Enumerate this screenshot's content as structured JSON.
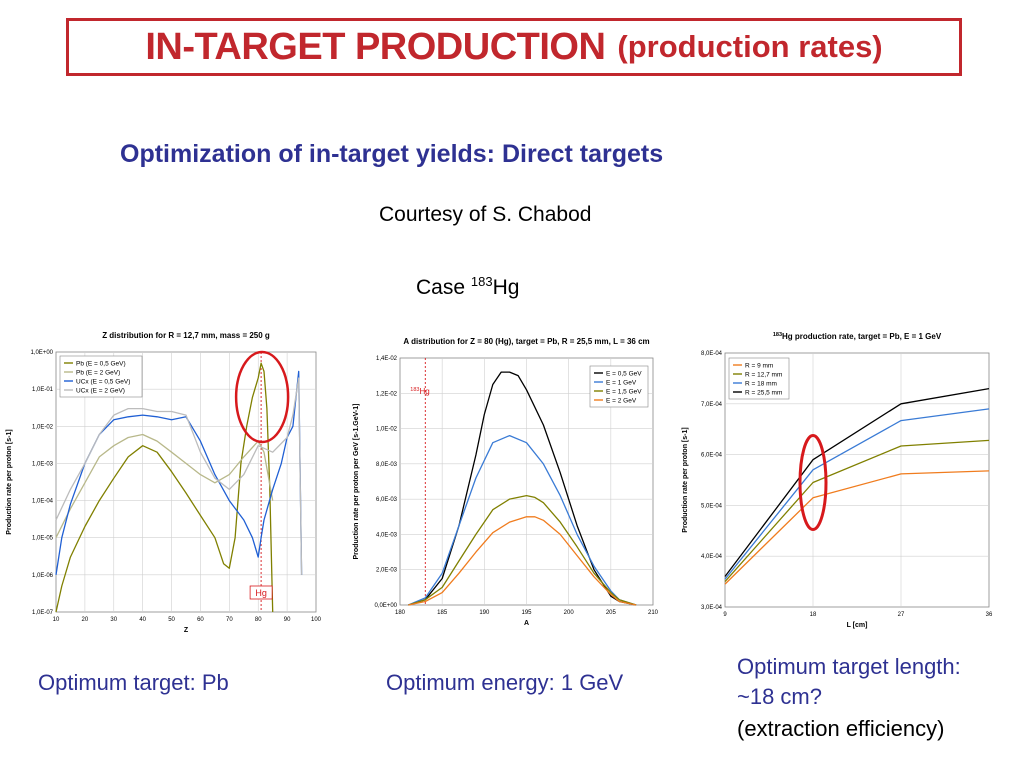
{
  "header": {
    "title": "IN-TARGET PRODUCTION",
    "title_paren": "(production rates)"
  },
  "subtitle": "Optimization of in-target yields: Direct targets",
  "courtesy": "Courtesy of S. Chabod",
  "case": {
    "prefix": "Case",
    "isotope_mass": "183",
    "element": "Hg"
  },
  "colors": {
    "title": "#c1272d",
    "subtitle": "#2e3192",
    "highlight": "#d7191c"
  },
  "captions": {
    "left": "Optimum target: Pb",
    "middle": "Optimum energy: 1 GeV",
    "right_line1": "Optimum target length:",
    "right_line2": "~18 cm?",
    "right_line3": "(extraction efficiency)"
  },
  "chart_data": [
    {
      "type": "line",
      "title": "Z distribution for R = 12,7 mm, mass = 250 g",
      "xlabel": "Z",
      "ylabel": "Production rate per proton [s-1]",
      "xlim": [
        10,
        100
      ],
      "ylim_log": [
        -7,
        0
      ],
      "x_ticks": [
        "10",
        "20",
        "30",
        "40",
        "50",
        "60",
        "70",
        "80",
        "90",
        "100"
      ],
      "y_ticks": [
        "1,0E-07",
        "1,0E-06",
        "1,0E-05",
        "1,0E-04",
        "1,0E-03",
        "1,0E-02",
        "1,0E-01",
        "1,0E+00"
      ],
      "y_scale": "log",
      "grid": true,
      "legend": "top-left",
      "marker": {
        "x": 81,
        "label": "Hg"
      },
      "series": [
        {
          "name": "Pb (E = 0,5 GeV)",
          "color": "#808000",
          "x": [
            10,
            12,
            15,
            20,
            25,
            30,
            35,
            40,
            45,
            50,
            55,
            60,
            65,
            68,
            70,
            72,
            74,
            76,
            78,
            80,
            81,
            82,
            83,
            84,
            85
          ],
          "y": [
            1e-07,
            5e-07,
            3e-06,
            2e-05,
            0.0001,
            0.0004,
            0.0015,
            0.003,
            0.002,
            0.0006,
            0.00016,
            4e-05,
            1e-05,
            2e-06,
            1.5e-06,
            1e-05,
            0.001,
            0.01,
            0.06,
            0.2,
            0.5,
            0.3,
            0.03,
            0.0002,
            1e-07
          ]
        },
        {
          "name": "Pb (E = 2 GeV)",
          "color": "#b8b88a",
          "x": [
            10,
            15,
            20,
            25,
            30,
            35,
            40,
            45,
            50,
            55,
            60,
            65,
            70,
            75,
            80,
            82,
            85
          ],
          "y": [
            1e-05,
            6e-05,
            0.0003,
            0.0015,
            0.003,
            0.005,
            0.006,
            0.004,
            0.002,
            0.001,
            0.0005,
            0.0003,
            0.0005,
            0.0015,
            0.004,
            0.002,
            0.0001
          ]
        },
        {
          "name": "UCx (E = 0,5 GeV)",
          "color": "#1f5fd4",
          "x": [
            10,
            12,
            15,
            20,
            25,
            30,
            35,
            40,
            45,
            50,
            55,
            60,
            65,
            70,
            75,
            78,
            80,
            81,
            82,
            85,
            88,
            90,
            92,
            94,
            95
          ],
          "y": [
            1e-06,
            1e-05,
            8e-05,
            0.001,
            0.006,
            0.015,
            0.018,
            0.02,
            0.018,
            0.015,
            0.018,
            0.004,
            0.0005,
            0.0001,
            3e-05,
            1e-05,
            3e-06,
            1e-05,
            3e-05,
            0.0002,
            0.001,
            0.005,
            0.01,
            0.3,
            1e-06
          ]
        },
        {
          "name": "UCx (E = 2 GeV)",
          "color": "#bcbcbc",
          "x": [
            10,
            15,
            20,
            25,
            30,
            35,
            40,
            45,
            50,
            55,
            60,
            65,
            70,
            75,
            80,
            85,
            90,
            92,
            94,
            95
          ],
          "y": [
            3e-05,
            0.0002,
            0.001,
            0.006,
            0.02,
            0.03,
            0.03,
            0.025,
            0.025,
            0.02,
            0.002,
            0.0004,
            0.0002,
            0.0005,
            0.003,
            0.002,
            0.005,
            0.02,
            0.2,
            1e-06
          ]
        }
      ]
    },
    {
      "type": "line",
      "title": "A distribution for Z = 80 (Hg), target = Pb, R = 25,5 mm, L = 36 cm",
      "xlabel": "A",
      "ylabel": "Production rate per proton per GeV [s-1.GeV-1]",
      "xlim": [
        180,
        210
      ],
      "ylim": [
        0,
        0.014
      ],
      "x_ticks": [
        "180",
        "185",
        "190",
        "195",
        "200",
        "205",
        "210"
      ],
      "y_ticks": [
        "0,0E+00",
        "2,0E-03",
        "4,0E-03",
        "6,0E-03",
        "8,0E-03",
        "1,0E-02",
        "1,2E-02",
        "1,4E-02"
      ],
      "grid": true,
      "legend": "top-right",
      "marker": {
        "x": 183,
        "label_mass": "183",
        "label_element": "Hg"
      },
      "series": [
        {
          "name": "E = 0,5 GeV",
          "color": "#000000",
          "x": [
            181,
            183,
            185,
            187,
            189,
            190,
            191,
            192,
            193,
            194,
            195,
            197,
            199,
            201,
            203,
            205,
            206,
            208
          ],
          "y": [
            0,
            0.0003,
            0.0015,
            0.0045,
            0.0085,
            0.0108,
            0.0125,
            0.0132,
            0.0132,
            0.013,
            0.0122,
            0.0102,
            0.0075,
            0.0045,
            0.002,
            0.0005,
            0.0002,
            0
          ]
        },
        {
          "name": "E = 1 GeV",
          "color": "#3a7bd5",
          "x": [
            181,
            183,
            185,
            187,
            189,
            191,
            193,
            195,
            197,
            199,
            201,
            203,
            205,
            206,
            208
          ],
          "y": [
            0,
            0.0004,
            0.0018,
            0.0045,
            0.0072,
            0.0092,
            0.0096,
            0.0092,
            0.008,
            0.0062,
            0.004,
            0.0022,
            0.0008,
            0.0003,
            0
          ]
        },
        {
          "name": "E = 1,5 GeV",
          "color": "#808000",
          "x": [
            181,
            183,
            185,
            187,
            189,
            191,
            193,
            195,
            196,
            197,
            199,
            201,
            203,
            205,
            206,
            208
          ],
          "y": [
            0,
            0.0003,
            0.001,
            0.0025,
            0.004,
            0.0054,
            0.006,
            0.0062,
            0.0061,
            0.0058,
            0.0047,
            0.0033,
            0.0018,
            0.0007,
            0.0003,
            0
          ]
        },
        {
          "name": "E = 2 GeV",
          "color": "#f07c1e",
          "x": [
            181,
            183,
            185,
            187,
            189,
            191,
            193,
            195,
            196,
            197,
            199,
            201,
            203,
            205,
            206,
            208
          ],
          "y": [
            0,
            0.0002,
            0.0007,
            0.0018,
            0.003,
            0.0041,
            0.0047,
            0.005,
            0.005,
            0.0048,
            0.004,
            0.0028,
            0.0016,
            0.0006,
            0.0002,
            0
          ]
        }
      ]
    },
    {
      "type": "line",
      "title_mass": "183",
      "title": "Hg production rate, target = Pb, E = 1 GeV",
      "xlabel": "L [cm]",
      "ylabel": "Production rate per proton [s-1]",
      "xlim": [
        9,
        36
      ],
      "ylim": [
        0.0003,
        0.0008
      ],
      "x_ticks": [
        "9",
        "18",
        "27",
        "36"
      ],
      "y_ticks": [
        "3,0E-04",
        "4,0E-04",
        "5,0E-04",
        "6,0E-04",
        "7,0E-04",
        "8,0E-04"
      ],
      "grid": true,
      "legend": "top-left",
      "series": [
        {
          "name": "R = 9 mm",
          "color": "#f07c1e",
          "x": [
            9,
            18,
            27,
            36
          ],
          "y": [
            0.000345,
            0.000515,
            0.000562,
            0.000568
          ]
        },
        {
          "name": "R = 12,7 mm",
          "color": "#808000",
          "x": [
            9,
            18,
            27,
            36
          ],
          "y": [
            0.00035,
            0.000545,
            0.000617,
            0.000628
          ]
        },
        {
          "name": "R = 18 mm",
          "color": "#3a7bd5",
          "x": [
            9,
            18,
            27,
            36
          ],
          "y": [
            0.000355,
            0.00057,
            0.000667,
            0.00069
          ]
        },
        {
          "name": "R = 25,5 mm",
          "color": "#000000",
          "x": [
            9,
            18,
            27,
            36
          ],
          "y": [
            0.00036,
            0.00059,
            0.0007,
            0.00073
          ]
        }
      ]
    }
  ]
}
